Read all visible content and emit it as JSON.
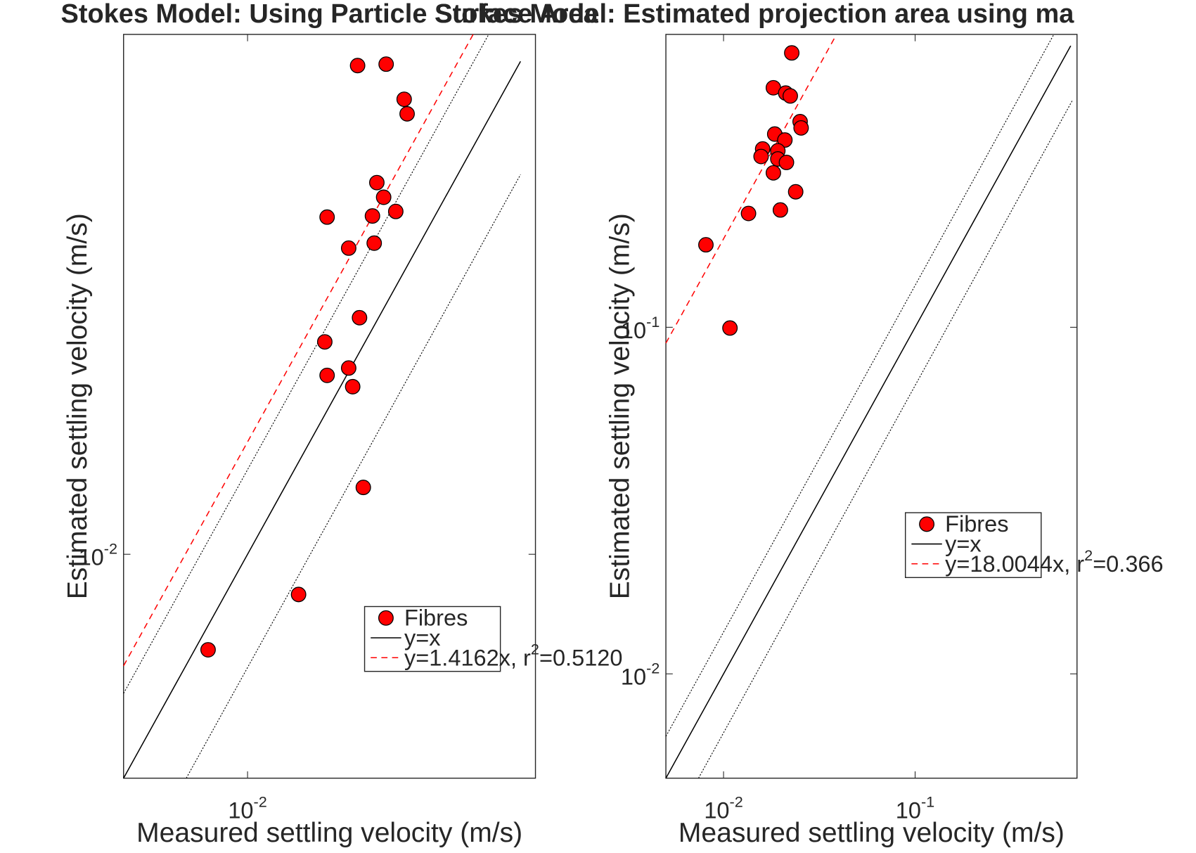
{
  "chart_data": [
    {
      "type": "scatter",
      "title": "Stokes Model: Using Particle Surface Area",
      "x_label": "Measured settling velocity (m/s)",
      "y_label": "Estimated settling velocity (m/s)",
      "log_x": true,
      "log_y": true,
      "legend": "southeast",
      "xlim": [
        0.005,
        0.05
      ],
      "ylim": [
        0.005,
        0.05
      ],
      "xticks": [
        {
          "value": 0.01,
          "label": [
            "10",
            "-2"
          ]
        }
      ],
      "yticks": [
        {
          "value": 0.01,
          "label": [
            "10",
            "-2"
          ]
        }
      ],
      "series": [
        {
          "name": "Fibres",
          "color": "#ff0000",
          "marker": "circle",
          "x": [
            0.0185,
            0.0217,
            0.024,
            0.0244,
            0.0206,
            0.0214,
            0.0229,
            0.0156,
            0.0201,
            0.0203,
            0.0176,
            0.0187,
            0.0154,
            0.0176,
            0.0156,
            0.018,
            0.0191,
            0.0133,
            0.00802
          ],
          "values": [
            0.0454,
            0.0456,
            0.0409,
            0.0391,
            0.0316,
            0.0302,
            0.0289,
            0.0284,
            0.0285,
            0.0262,
            0.0258,
            0.0208,
            0.0193,
            0.0178,
            0.0174,
            0.0168,
            0.0123,
            0.00883,
            0.00744
          ]
        },
        {
          "name": "y=x",
          "color": "#000000",
          "line": "solid",
          "x": [
            0.005,
            0.046
          ],
          "values": [
            0.005,
            0.046
          ]
        },
        {
          "name": [
            "y=1.4162x, r",
            "2",
            "=0.5120"
          ],
          "color": "#ff0000",
          "line": "dashed",
          "x": [
            0.005,
            0.0353
          ],
          "values": [
            0.00708,
            0.05
          ]
        }
      ],
      "guides": [
        {
          "color": "#000000",
          "line": "dotted",
          "x": [
            0.005,
            0.0385
          ],
          "values": [
            0.0065,
            0.05
          ]
        },
        {
          "color": "#000000",
          "line": "dotted",
          "x": [
            0.0071,
            0.046
          ],
          "values": [
            0.005,
            0.0324
          ]
        }
      ]
    },
    {
      "type": "scatter",
      "title": "Stokes Model: Estimated projection area using ma",
      "x_label": "Measured settling velocity (m/s)",
      "y_label": "Estimated settling velocity (m/s)",
      "log_x": true,
      "log_y": true,
      "legend": "east",
      "xlim": [
        0.005,
        0.7
      ],
      "ylim": [
        0.005,
        0.7
      ],
      "xticks": [
        {
          "value": 0.01,
          "label": [
            "10",
            "-2"
          ]
        },
        {
          "value": 0.1,
          "label": [
            "10",
            "-1"
          ]
        }
      ],
      "yticks": [
        {
          "value": 0.01,
          "label": [
            "10",
            "-2"
          ]
        },
        {
          "value": 0.1,
          "label": [
            "10",
            "-1"
          ]
        }
      ],
      "series": [
        {
          "name": "Fibres",
          "color": "#ff0000",
          "marker": "circle",
          "x": [
            0.0227,
            0.0182,
            0.0211,
            0.0223,
            0.0251,
            0.0254,
            0.0185,
            0.0209,
            0.016,
            0.0192,
            0.0157,
            0.0192,
            0.0213,
            0.0182,
            0.0238,
            0.0135,
            0.0198,
            0.00809,
            0.0108
          ],
          "values": [
            0.619,
            0.491,
            0.474,
            0.465,
            0.392,
            0.376,
            0.361,
            0.347,
            0.327,
            0.323,
            0.311,
            0.306,
            0.299,
            0.279,
            0.246,
            0.213,
            0.218,
            0.173,
            0.0995
          ]
        },
        {
          "name": "y=x",
          "color": "#000000",
          "line": "solid",
          "x": [
            0.005,
            0.649
          ],
          "values": [
            0.005,
            0.649
          ]
        },
        {
          "name": [
            "y=18.0044x, r",
            "2",
            "=0.366"
          ],
          "color": "#ff0000",
          "line": "dashed",
          "x": [
            0.005,
            0.038
          ],
          "values": [
            0.09,
            0.684
          ]
        }
      ],
      "guides": [
        {
          "color": "#000000",
          "line": "dotted",
          "x": [
            0.005,
            0.53
          ],
          "values": [
            0.0066,
            0.7
          ]
        },
        {
          "color": "#000000",
          "line": "dotted",
          "x": [
            0.0074,
            0.66
          ],
          "values": [
            0.005,
            0.45
          ]
        }
      ]
    }
  ]
}
